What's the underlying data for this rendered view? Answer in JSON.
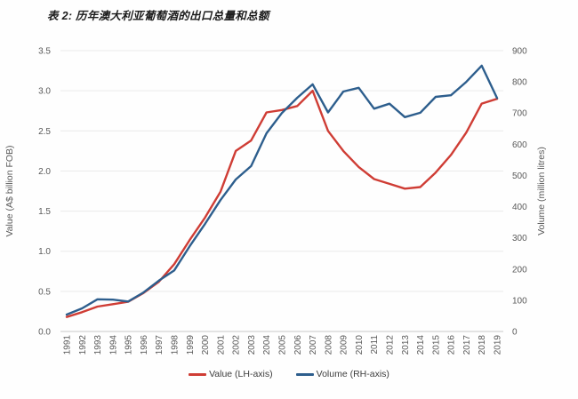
{
  "page": {
    "title": "表 2: 历年澳大利亚葡萄酒的出口总量和总额"
  },
  "chart_data": {
    "type": "line",
    "title": "表 2: 历年澳大利亚葡萄酒的出口总量和总额",
    "x": [
      1991,
      1992,
      1993,
      1994,
      1995,
      1996,
      1997,
      1998,
      1999,
      2000,
      2001,
      2002,
      2003,
      2004,
      2005,
      2006,
      2007,
      2008,
      2009,
      2010,
      2011,
      2012,
      2013,
      2014,
      2015,
      2016,
      2017,
      2018,
      2019
    ],
    "series": [
      {
        "name": "Value (LH-axis)",
        "axis": "left",
        "color": "#cf3d35",
        "values": [
          0.18,
          0.24,
          0.31,
          0.34,
          0.37,
          0.48,
          0.62,
          0.84,
          1.14,
          1.42,
          1.74,
          2.25,
          2.38,
          2.73,
          2.76,
          2.81,
          3.0,
          2.5,
          2.25,
          2.05,
          1.9,
          1.84,
          1.78,
          1.8,
          1.98,
          2.2,
          2.48,
          2.84,
          2.9
        ]
      },
      {
        "name": "Volume (RH-axis)",
        "axis": "right",
        "color": "#2d5e8d",
        "values": [
          54,
          74,
          103,
          102,
          96,
          125,
          163,
          196,
          273,
          345,
          421,
          487,
          530,
          635,
          700,
          749,
          792,
          702,
          769,
          781,
          714,
          730,
          687,
          701,
          752,
          757,
          800,
          852,
          748
        ]
      }
    ],
    "left_axis": {
      "label": "Value (A$ billion FOB)",
      "min": 0,
      "max": 3.5,
      "tick_step": 0.5,
      "ticks": [
        "0.0",
        "0.5",
        "1.0",
        "1.5",
        "2.0",
        "2.5",
        "3.0",
        "3.5"
      ]
    },
    "right_axis": {
      "label": "Volume (million litres)",
      "min": 0,
      "max": 900,
      "tick_step": 100,
      "ticks": [
        "0",
        "100",
        "200",
        "300",
        "400",
        "500",
        "600",
        "700",
        "800",
        "900"
      ]
    },
    "x_axis": {
      "tick_labels": [
        "1991",
        "1992",
        "1993",
        "1994",
        "1995",
        "1996",
        "1997",
        "1998",
        "1999",
        "2000",
        "2001",
        "2002",
        "2003",
        "2004",
        "2005",
        "2006",
        "2007",
        "2008",
        "2009",
        "2010",
        "2011",
        "2012",
        "2013",
        "2014",
        "2015",
        "2016",
        "2017",
        "2018",
        "2019"
      ]
    },
    "grid": "horizontal-left-axis-intervals",
    "legend_position": "bottom-center"
  },
  "legend": {
    "items": [
      {
        "label": "Value (LH-axis)",
        "color": "#cf3d35"
      },
      {
        "label": "Volume (RH-axis)",
        "color": "#2d5e8d"
      }
    ]
  },
  "colors": {
    "background": "#fefefe",
    "grid": "#eaeaea",
    "baseline": "#c8c8c8",
    "axis_text": "#595959",
    "title_text": "#1c1c1c",
    "value_line": "#cf3d35",
    "volume_line": "#2d5e8d"
  }
}
